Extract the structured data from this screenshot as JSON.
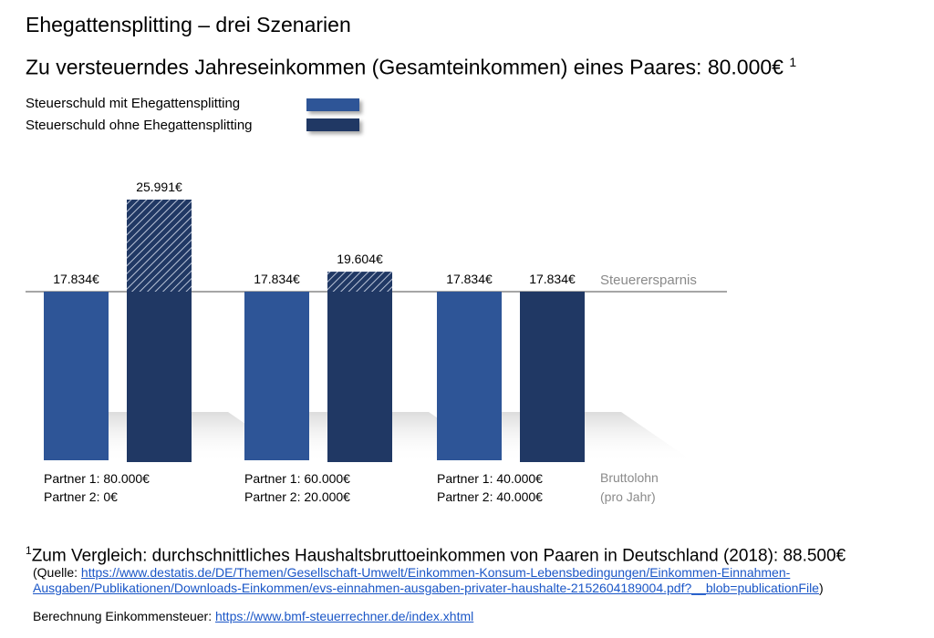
{
  "title": "Ehegattensplitting – drei Szenarien",
  "subtitle": "Zu versteuerndes Jahreseinkommen (Gesamteinkommen) eines Paares: 80.000€",
  "subtitle_sup": "1",
  "legend": [
    {
      "label": "Steuerschuld mit Ehegattensplitting",
      "color": "#2e5597"
    },
    {
      "label": "Steuerschuld ohne Ehegattensplitting",
      "color": "#203864"
    }
  ],
  "chart_data": {
    "type": "bar",
    "categories": [
      [
        "Partner 1: 80.000€",
        "Partner 2: 0€"
      ],
      [
        "Partner 1: 60.000€",
        "Partner 2: 20.000€"
      ],
      [
        "Partner 1: 40.000€",
        "Partner 2: 40.000€"
      ]
    ],
    "series": [
      {
        "name": "Steuerschuld mit Ehegattensplitting",
        "values": [
          17834,
          17834,
          17834
        ],
        "labels": [
          "17.834€",
          "17.834€",
          "17.834€"
        ],
        "color": "#2e5597"
      },
      {
        "name": "Steuerschuld ohne Ehegattensplitting",
        "values": [
          25991,
          19604,
          17834
        ],
        "labels": [
          "25.991€",
          "19.604€",
          "17.834€"
        ],
        "color": "#203864"
      }
    ],
    "reference_line": {
      "value": 17834,
      "label": "Steuerersparnis"
    },
    "category_axis_label": [
      "Bruttolohn",
      "(pro Jahr)"
    ],
    "ylim": [
      0,
      26000
    ],
    "grid": false
  },
  "footnote": {
    "sup": "1",
    "text": "Zum Vergleich: durchschnittliches Haushaltsbruttoeinkommen von Paaren in Deutschland (2018): 88.500€",
    "source_prefix": "(Quelle: ",
    "source_url": "https://www.destatis.de/DE/Themen/Gesellschaft-Umwelt/Einkommen-Konsum-Lebensbedingungen/Einkommen-Einnahmen-Ausgaben/Publikationen/Downloads-Einkommen/evs-einnahmen-ausgaben-privater-haushalte-2152604189004.pdf?__blob=publicationFile",
    "source_suffix": ")",
    "calc_prefix": "Berechnung Einkommensteuer: ",
    "calc_url": "https://www.bmf-steuerrechner.de/index.xhtml"
  }
}
